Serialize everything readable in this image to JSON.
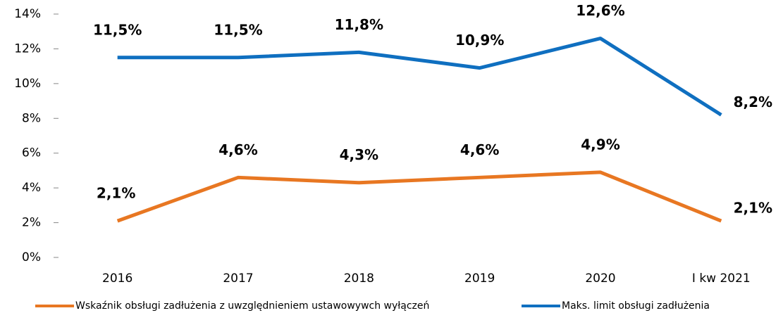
{
  "chart_data": {
    "type": "line",
    "categories": [
      "2016",
      "2017",
      "2018",
      "2019",
      "2020",
      "I kw 2021"
    ],
    "series": [
      {
        "name": "Wskaźnik obsługi zadłużenia  z uwzględnieniem ustawowywch wyłączeń",
        "color": "#e87722",
        "values": [
          2.1,
          4.6,
          4.3,
          4.6,
          4.9,
          2.1
        ],
        "value_labels": [
          "2,1%",
          "4,6%",
          "4,3%",
          "4,6%",
          "4,9%",
          "2,1%"
        ]
      },
      {
        "name": "Maks. limit obsługi zadłużenia",
        "color": "#0f6fc0",
        "values": [
          11.5,
          11.5,
          11.8,
          10.9,
          12.6,
          8.2
        ],
        "value_labels": [
          "11,5%",
          "11,5%",
          "11,8%",
          "10,9%",
          "12,6%",
          "8,2%"
        ]
      }
    ],
    "ylim": [
      0,
      14
    ],
    "yticks": [
      {
        "value": 0,
        "label": "0%"
      },
      {
        "value": 2,
        "label": "2%"
      },
      {
        "value": 4,
        "label": "4%"
      },
      {
        "value": 6,
        "label": "6%"
      },
      {
        "value": 8,
        "label": "8%"
      },
      {
        "value": 10,
        "label": "10%"
      },
      {
        "value": 12,
        "label": "12%"
      },
      {
        "value": 14,
        "label": "14%"
      }
    ],
    "grid": false
  }
}
